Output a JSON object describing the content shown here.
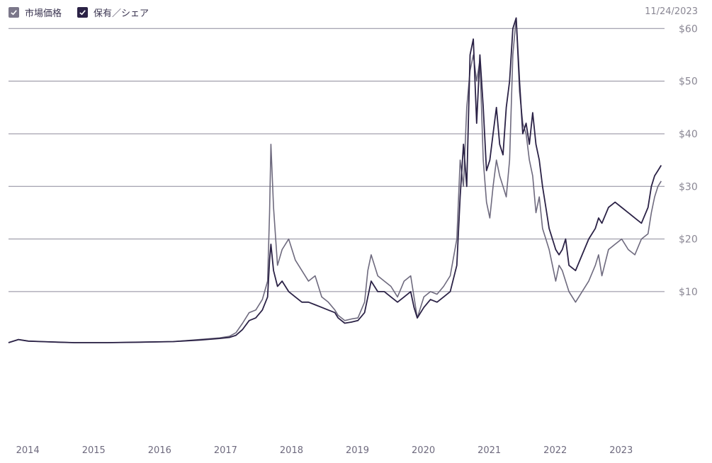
{
  "legend": [
    {
      "label": "市場価格",
      "color": "#6e6a7e"
    },
    {
      "label": "保有／シェア",
      "color": "#2b2246"
    }
  ],
  "date": "11/24/2023",
  "chart_data": {
    "type": "line",
    "ylim": [
      -11,
      63
    ],
    "xlim": [
      2014.0,
      2023.95
    ],
    "y_ticks": [
      10,
      20,
      30,
      40,
      50,
      60
    ],
    "y_tick_labels": [
      "$10",
      "$20",
      "$30",
      "$40",
      "$50",
      "$60"
    ],
    "x_ticks": [
      2014,
      2015,
      2016,
      2017,
      2018,
      2019,
      2020,
      2021,
      2022,
      2023
    ],
    "x_tick_labels": [
      "2014",
      "2015",
      "2016",
      "2017",
      "2018",
      "2019",
      "2020",
      "2021",
      "2022",
      "2023"
    ],
    "grid": true,
    "legend_position": "top-left",
    "series": [
      {
        "name": "市場価格",
        "color": "#6e6a7e",
        "x": [
          2014.0,
          2014.15,
          2014.3,
          2014.5,
          2014.75,
          2015.0,
          2015.5,
          2016.0,
          2016.5,
          2016.9,
          2017.2,
          2017.35,
          2017.45,
          2017.55,
          2017.65,
          2017.75,
          2017.85,
          2017.93,
          2017.96,
          2017.98,
          2018.02,
          2018.08,
          2018.15,
          2018.25,
          2018.35,
          2018.45,
          2018.55,
          2018.65,
          2018.75,
          2018.85,
          2018.95,
          2019.0,
          2019.1,
          2019.2,
          2019.3,
          2019.4,
          2019.45,
          2019.5,
          2019.6,
          2019.7,
          2019.8,
          2019.9,
          2020.0,
          2020.1,
          2020.15,
          2020.2,
          2020.3,
          2020.4,
          2020.5,
          2020.6,
          2020.7,
          2020.8,
          2020.85,
          2020.9,
          2020.95,
          2021.0,
          2021.05,
          2021.1,
          2021.15,
          2021.2,
          2021.25,
          2021.3,
          2021.35,
          2021.4,
          2021.45,
          2021.5,
          2021.55,
          2021.6,
          2021.65,
          2021.7,
          2021.75,
          2021.8,
          2021.85,
          2021.9,
          2021.95,
          2022.0,
          2022.05,
          2022.1,
          2022.15,
          2022.2,
          2022.25,
          2022.3,
          2022.35,
          2022.4,
          2022.45,
          2022.5,
          2022.6,
          2022.7,
          2022.8,
          2022.9,
          2022.95,
          2023.0,
          2023.1,
          2023.2,
          2023.3,
          2023.4,
          2023.5,
          2023.6,
          2023.7,
          2023.75,
          2023.8,
          2023.85,
          2023.9
        ],
        "values": [
          0.3,
          0.9,
          0.6,
          0.5,
          0.4,
          0.3,
          0.3,
          0.4,
          0.5,
          0.9,
          1.2,
          1.5,
          2.2,
          4.0,
          6.0,
          6.5,
          8.5,
          12,
          25,
          38,
          26,
          15,
          18,
          20,
          16,
          14,
          12,
          13,
          9,
          8,
          6.5,
          5.5,
          4.5,
          4.8,
          5,
          8,
          14,
          17,
          13,
          12,
          11,
          9,
          12,
          13,
          9,
          5,
          9,
          10,
          9.5,
          11,
          13,
          20,
          35,
          30,
          45,
          52,
          55,
          50,
          54,
          35,
          27,
          24,
          30,
          35,
          32,
          30,
          28,
          35,
          55,
          62,
          48,
          42,
          40,
          35,
          32,
          25,
          28,
          22,
          20,
          18,
          15,
          12,
          15,
          14,
          12,
          10,
          8,
          10,
          12,
          15,
          17,
          13,
          18,
          19,
          20,
          18,
          17,
          20,
          21,
          25,
          28,
          30,
          31
        ]
      },
      {
        "name": "保有／シェア",
        "color": "#2b2246",
        "x": [
          2014.0,
          2014.15,
          2014.3,
          2014.5,
          2014.75,
          2015.0,
          2015.5,
          2016.0,
          2016.5,
          2016.9,
          2017.2,
          2017.35,
          2017.45,
          2017.55,
          2017.65,
          2017.75,
          2017.85,
          2017.93,
          2017.96,
          2017.98,
          2018.02,
          2018.08,
          2018.15,
          2018.25,
          2018.35,
          2018.45,
          2018.55,
          2018.65,
          2018.75,
          2018.85,
          2018.95,
          2019.0,
          2019.1,
          2019.2,
          2019.3,
          2019.4,
          2019.45,
          2019.5,
          2019.6,
          2019.7,
          2019.8,
          2019.9,
          2020.0,
          2020.1,
          2020.15,
          2020.2,
          2020.3,
          2020.4,
          2020.5,
          2020.6,
          2020.7,
          2020.8,
          2020.85,
          2020.9,
          2020.95,
          2021.0,
          2021.05,
          2021.1,
          2021.15,
          2021.2,
          2021.25,
          2021.3,
          2021.35,
          2021.4,
          2021.45,
          2021.5,
          2021.55,
          2021.6,
          2021.65,
          2021.7,
          2021.75,
          2021.8,
          2021.85,
          2021.9,
          2021.95,
          2022.0,
          2022.05,
          2022.1,
          2022.15,
          2022.2,
          2022.25,
          2022.3,
          2022.35,
          2022.4,
          2022.45,
          2022.5,
          2022.6,
          2022.7,
          2022.8,
          2022.9,
          2022.95,
          2023.0,
          2023.1,
          2023.2,
          2023.3,
          2023.4,
          2023.5,
          2023.6,
          2023.7,
          2023.75,
          2023.8,
          2023.85,
          2023.9
        ],
        "values": [
          0.3,
          0.9,
          0.6,
          0.5,
          0.4,
          0.3,
          0.3,
          0.4,
          0.5,
          0.8,
          1.1,
          1.3,
          1.7,
          2.8,
          4.5,
          5.0,
          6.5,
          9,
          16,
          19,
          14,
          11,
          12,
          10,
          9,
          8,
          8,
          7.5,
          7,
          6.5,
          6,
          5.0,
          4.0,
          4.2,
          4.5,
          6,
          9,
          12,
          10,
          10,
          9,
          8,
          9,
          10,
          7,
          5,
          7,
          8.5,
          8,
          9,
          10,
          15,
          28,
          38,
          30,
          55,
          58,
          42,
          55,
          45,
          33,
          35,
          40,
          45,
          38,
          36,
          45,
          50,
          60,
          62,
          50,
          40,
          42,
          38,
          44,
          38,
          35,
          30,
          26,
          22,
          20,
          18,
          17,
          18,
          20,
          15,
          14,
          17,
          20,
          22,
          24,
          23,
          26,
          27,
          26,
          25,
          24,
          23,
          26,
          30,
          32,
          33,
          34
        ]
      }
    ]
  }
}
